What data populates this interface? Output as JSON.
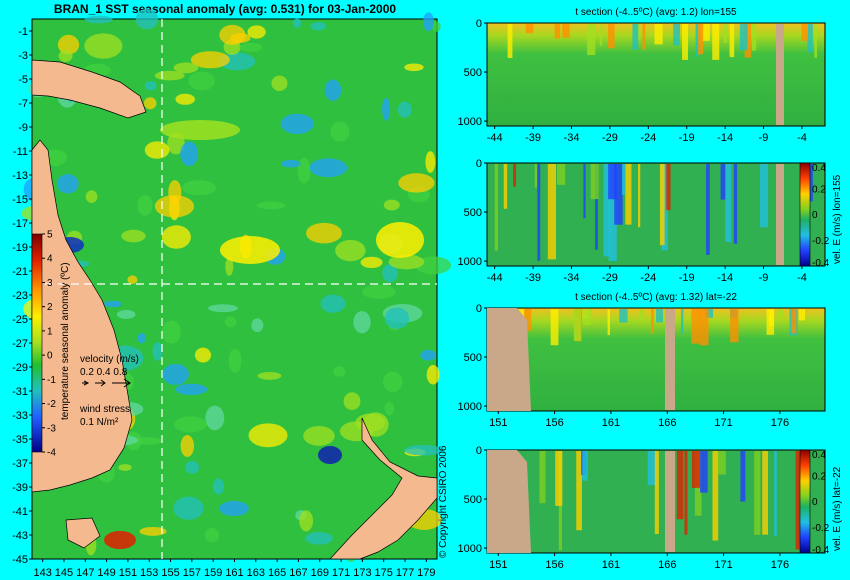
{
  "chart_data": [
    {
      "type": "heatmap",
      "title": "BRAN_1  SST seasonal anomaly  (avg: 0.531) for 03-Jan-2000",
      "x_ticks": [
        "143",
        "145",
        "147",
        "149",
        "151",
        "153",
        "155",
        "157",
        "159",
        "161",
        "163",
        "165",
        "167",
        "169",
        "171",
        "173",
        "175",
        "177",
        "179"
      ],
      "y_ticks": [
        "-1",
        "-3",
        "-5",
        "-7",
        "-9",
        "-11",
        "-13",
        "-15",
        "-17",
        "-19",
        "-21",
        "-23",
        "-25",
        "-27",
        "-29",
        "-31",
        "-33",
        "-35",
        "-37",
        "-39",
        "-41",
        "-43",
        "-45"
      ],
      "xlim": [
        142,
        180
      ],
      "ylim": [
        -45,
        0
      ],
      "crosshair": {
        "lon": 155,
        "lat": -22
      },
      "colorbar": {
        "label": "temperature seasonal anomaly (ºC)",
        "ticks": [
          "5",
          "4",
          "3",
          "2",
          "1",
          "0",
          "-1",
          "-2",
          "-3",
          "-4"
        ],
        "range": [
          -4,
          5
        ]
      },
      "velocity_legend": {
        "label": "velocity (m/s)",
        "values": "0.2 0.4 0.8"
      },
      "wind_legend": {
        "label": "wind stress",
        "value": "0.1 N/m²"
      },
      "colors": {
        "land": "#f4b98e",
        "background": "#00ffff"
      }
    },
    {
      "type": "heatmap",
      "title": "t section (-4..5ºC)  (avg: 1.2) lon=155",
      "x_ticks": [
        "-44",
        "-39",
        "-34",
        "-29",
        "-24",
        "-19",
        "-14",
        "-9",
        "-4"
      ],
      "y_ticks": [
        "0",
        "500",
        "1000"
      ],
      "xlim": [
        -45,
        -1
      ],
      "ylim": [
        1050,
        0
      ]
    },
    {
      "type": "heatmap",
      "title": "",
      "x_ticks": [
        "-44",
        "-39",
        "-34",
        "-29",
        "-24",
        "-19",
        "-14",
        "-9",
        "-4"
      ],
      "y_ticks": [
        "0",
        "500",
        "1000"
      ],
      "xlim": [
        -45,
        -1
      ],
      "ylim": [
        1050,
        0
      ],
      "colorbar": {
        "label": "vel. E (m/s) lon=155",
        "ticks": [
          "0.4",
          "0.2",
          "0",
          "-0.2",
          "-0.4"
        ],
        "range": [
          -0.4,
          0.4
        ]
      }
    },
    {
      "type": "heatmap",
      "title": "t section (-4..5ºC)  (avg: 1.32) lat=-22",
      "x_ticks": [
        "151",
        "156",
        "161",
        "166",
        "171",
        "176"
      ],
      "y_ticks": [
        "0",
        "500",
        "1000"
      ],
      "xlim": [
        150,
        180
      ],
      "ylim": [
        1050,
        0
      ]
    },
    {
      "type": "heatmap",
      "title": "",
      "x_ticks": [
        "151",
        "156",
        "161",
        "166",
        "171",
        "176"
      ],
      "y_ticks": [
        "0",
        "500",
        "1000"
      ],
      "xlim": [
        150,
        180
      ],
      "ylim": [
        1050,
        0
      ],
      "colorbar": {
        "label": "vel. E (m/s) lat=-22",
        "ticks": [
          "0.4",
          "0.2",
          "0",
          "-0.2",
          "-0.4"
        ],
        "range": [
          -0.4,
          0.4
        ]
      }
    }
  ],
  "copyright": "© Copyright CSIRO 2006"
}
